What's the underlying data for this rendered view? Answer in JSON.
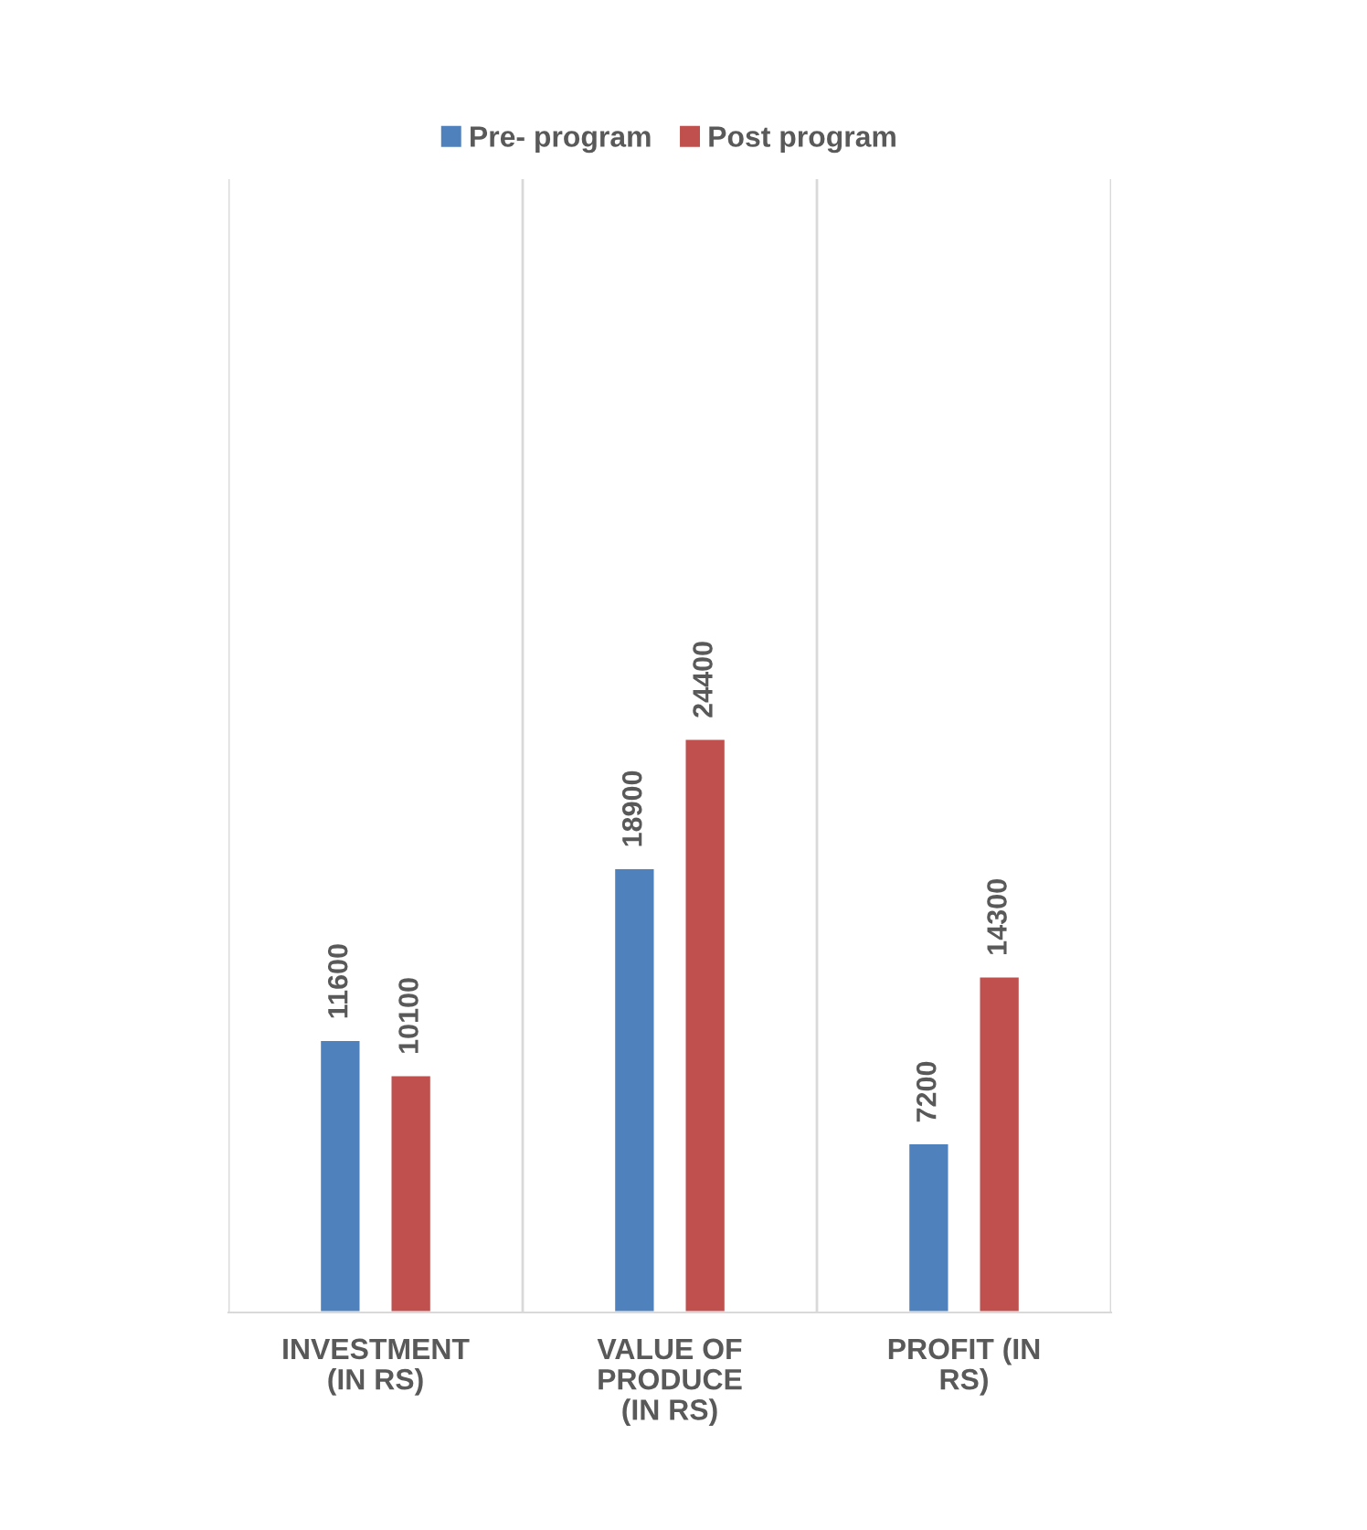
{
  "chart_data": {
    "type": "bar",
    "categories": [
      "INVESTMENT\n(IN RS)",
      "VALUE OF\nPRODUCE\n(IN RS)",
      "PROFIT (IN\nRS)"
    ],
    "series": [
      {
        "name": "Pre- program",
        "color": "#4f81bd",
        "values": [
          11600,
          18900,
          7200
        ]
      },
      {
        "name": "Post program",
        "color": "#c0504d",
        "values": [
          10100,
          24400,
          14300
        ]
      }
    ],
    "data_labels": true,
    "grid": "x",
    "legend": "top"
  }
}
